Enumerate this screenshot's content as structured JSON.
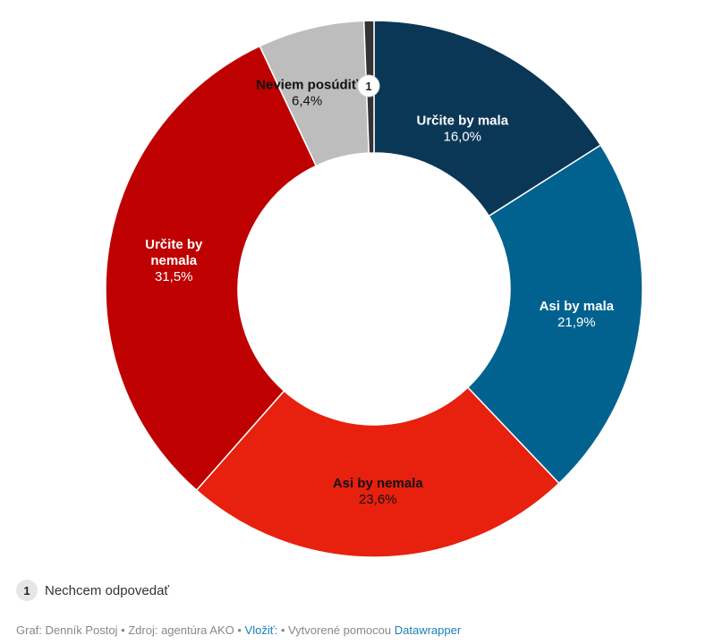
{
  "chart_data": {
    "type": "donut",
    "slices": [
      {
        "name": "Určite by mala",
        "value_label": "16,0%",
        "value": 16.0,
        "color": "#0b3757",
        "label_color": "#ffffff",
        "show_label": true
      },
      {
        "name": "Asi by mala",
        "value_label": "21,9%",
        "value": 21.9,
        "color": "#02628f",
        "label_color": "#ffffff",
        "show_label": true
      },
      {
        "name": "Asi by nemala",
        "value_label": "23,6%",
        "value": 23.6,
        "color": "#e8200e",
        "label_color": "#111111",
        "show_label": true
      },
      {
        "name": "Určite by nemala",
        "value_label": "31,5%",
        "value": 31.5,
        "color": "#be0000",
        "label_color": "#ffffff",
        "show_label": true
      },
      {
        "name": "Neviem posúdiť",
        "value_label": "6,4%",
        "value": 6.4,
        "color": "#bdbdbd",
        "label_color": "#111111",
        "show_label": true
      },
      {
        "name": "Nechcem odpovedať",
        "value_label": "",
        "value": 0.6,
        "color": "#333333",
        "label_color": "#111111",
        "show_label": false,
        "note_marker": "1"
      }
    ]
  },
  "footnote": {
    "marker": "1",
    "text": "Nechcem odpovedať"
  },
  "credits": {
    "graf": "Graf: Denník Postoj",
    "sep1": " • ",
    "zdroj": "Zdroj: agentúra AKO",
    "sep2": " • ",
    "vlozit": "Vložiť:",
    "sep3": " • ",
    "vytvorene": "Vytvorené pomocou ",
    "datawrapper": "Datawrapper"
  }
}
